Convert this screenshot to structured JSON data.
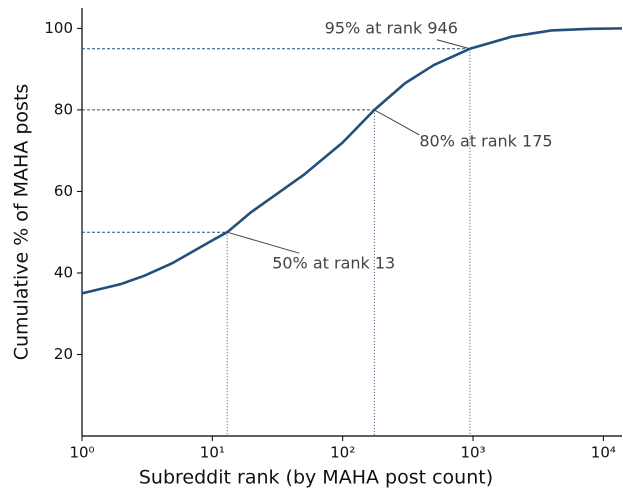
{
  "chart_data": {
    "type": "line",
    "x": [
      1,
      2,
      3,
      5,
      10,
      13,
      20,
      50,
      100,
      175,
      300,
      500,
      946,
      2000,
      4000,
      8000,
      13900
    ],
    "values": [
      35,
      37.3,
      39.3,
      42.5,
      48,
      50,
      55,
      64,
      72,
      80,
      86.5,
      91,
      95,
      98,
      99.5,
      99.9,
      100
    ],
    "color": "#23507a",
    "xlabel": "Subreddit rank (by MAHA post count)",
    "ylabel": "Cumulative % of MAHA posts",
    "xscale": "log",
    "xlim": [
      1,
      13900
    ],
    "ylim": [
      0,
      105
    ],
    "xticks": [
      {
        "value": 1,
        "label": "10⁰"
      },
      {
        "value": 10,
        "label": "10¹"
      },
      {
        "value": 100,
        "label": "10²"
      },
      {
        "value": 1000,
        "label": "10³"
      },
      {
        "value": 10000,
        "label": "10⁴"
      }
    ],
    "yticks": [
      20,
      40,
      60,
      80,
      100
    ],
    "annotations": [
      {
        "text": "50% at rank 13",
        "x": 13,
        "y": 50
      },
      {
        "text": "80% at rank 175",
        "x": 175,
        "y": 80
      },
      {
        "text": "95% at rank 946",
        "x": 946,
        "y": 95
      }
    ]
  }
}
